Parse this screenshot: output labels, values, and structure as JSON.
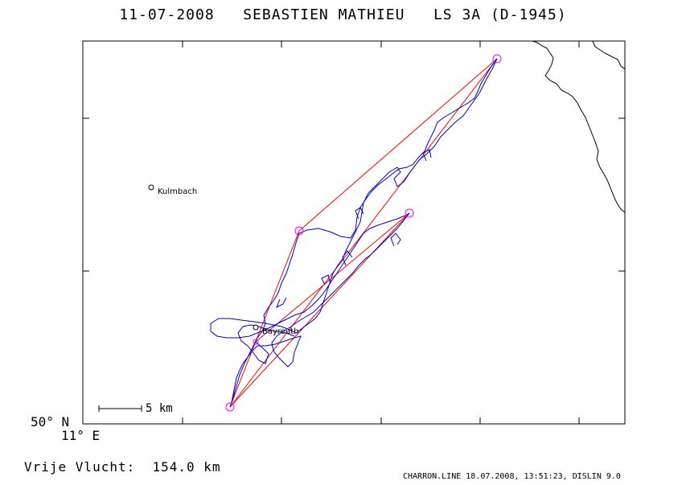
{
  "header": {
    "title": "11-07-2008   SEBASTIEN MATHIEU   LS 3A (D-1945)"
  },
  "map": {
    "lat_label": "50° N",
    "lon_label": "11° E",
    "towns": [
      {
        "name": "Kulmbach"
      },
      {
        "name": "Bayreuth"
      }
    ],
    "scale_bar": {
      "label": "5 km"
    },
    "colors": {
      "track": "#0000cc",
      "task_line": "#ff0000",
      "turnpoint": "#ff00ff",
      "border": "#000000"
    }
  },
  "summary": {
    "distance_text": "Vrije Vlucht:  154.0 km"
  },
  "footer": {
    "text": "CHARRON.LINE 18.07.2008, 13:51:23, DISLIN 9.0"
  }
}
